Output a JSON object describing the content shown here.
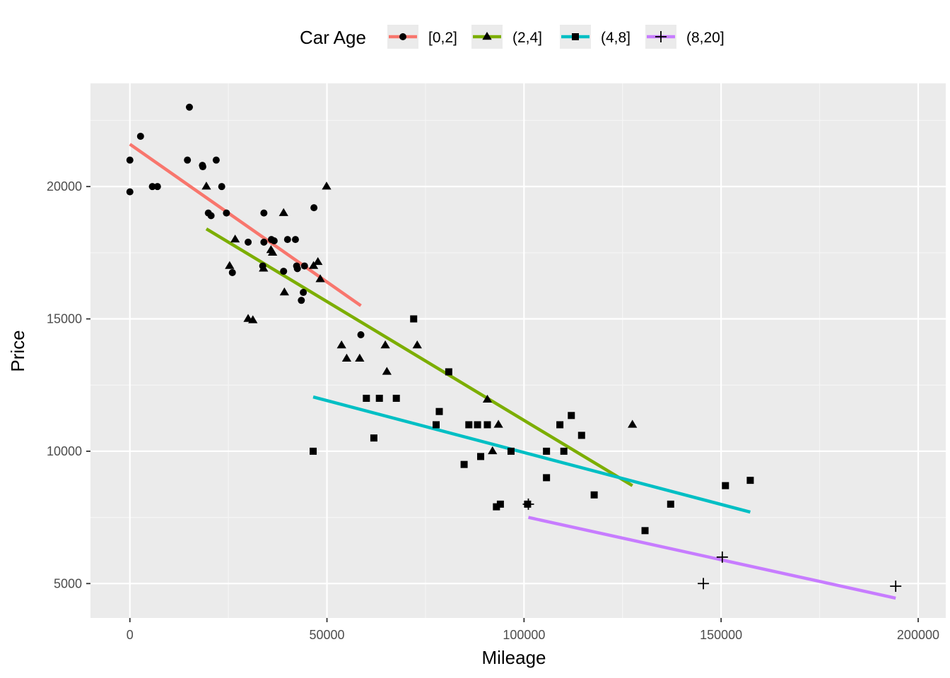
{
  "chart_data": {
    "type": "scatter",
    "title": "",
    "xlabel": "Mileage",
    "ylabel": "Price",
    "xlim": [
      -10000,
      207000
    ],
    "ylim": [
      3700,
      23900
    ],
    "x_ticks": [
      0,
      50000,
      100000,
      150000,
      200000
    ],
    "y_ticks": [
      5000,
      10000,
      15000,
      20000
    ],
    "grid": true,
    "legend": {
      "title": "Car Age",
      "position": "top"
    },
    "series": [
      {
        "name": "[0,2]",
        "color": "#F8766D",
        "marker": "circle",
        "points": [
          [
            0,
            19800
          ],
          [
            0,
            21000
          ],
          [
            2700,
            21900
          ],
          [
            5700,
            20000
          ],
          [
            7000,
            20000
          ],
          [
            14600,
            21000
          ],
          [
            15100,
            23000
          ],
          [
            18400,
            20800
          ],
          [
            18500,
            20750
          ],
          [
            19900,
            19000
          ],
          [
            20600,
            18900
          ],
          [
            21900,
            21000
          ],
          [
            23300,
            20000
          ],
          [
            24500,
            19000
          ],
          [
            26000,
            16750
          ],
          [
            30000,
            17900
          ],
          [
            33700,
            17000
          ],
          [
            34000,
            19000
          ],
          [
            34000,
            17900
          ],
          [
            35900,
            18000
          ],
          [
            36600,
            17950
          ],
          [
            39000,
            16800
          ],
          [
            40000,
            18000
          ],
          [
            42000,
            18000
          ],
          [
            42300,
            17000
          ],
          [
            42500,
            16900
          ],
          [
            43500,
            15700
          ],
          [
            44000,
            16000
          ],
          [
            44300,
            17000
          ],
          [
            46700,
            19200
          ],
          [
            58600,
            14400
          ]
        ],
        "fit": [
          [
            0,
            21600
          ],
          [
            58600,
            15500
          ]
        ]
      },
      {
        "name": "(2,4]",
        "color": "#7CAE00",
        "marker": "triangle",
        "points": [
          [
            19400,
            20000
          ],
          [
            25300,
            17000
          ],
          [
            26700,
            18000
          ],
          [
            30000,
            15000
          ],
          [
            31200,
            14950
          ],
          [
            33900,
            16900
          ],
          [
            35800,
            17600
          ],
          [
            36200,
            17500
          ],
          [
            39000,
            19000
          ],
          [
            39200,
            16000
          ],
          [
            46600,
            17000
          ],
          [
            47700,
            17150
          ],
          [
            48300,
            16500
          ],
          [
            49900,
            20000
          ],
          [
            53700,
            14000
          ],
          [
            55000,
            13500
          ],
          [
            58300,
            13500
          ],
          [
            64800,
            14000
          ],
          [
            65200,
            13000
          ],
          [
            72900,
            14000
          ],
          [
            90700,
            11950
          ],
          [
            92000,
            10000
          ],
          [
            93500,
            11000
          ],
          [
            127500,
            11000
          ]
        ],
        "fit": [
          [
            19400,
            18400
          ],
          [
            127500,
            8700
          ]
        ]
      },
      {
        "name": "(4,8]",
        "color": "#00BFC4",
        "marker": "square",
        "points": [
          [
            46500,
            10000
          ],
          [
            60000,
            12000
          ],
          [
            61900,
            10500
          ],
          [
            63300,
            12000
          ],
          [
            67600,
            12000
          ],
          [
            72000,
            15000
          ],
          [
            77700,
            11000
          ],
          [
            78500,
            11500
          ],
          [
            80900,
            13000
          ],
          [
            84800,
            9500
          ],
          [
            86000,
            11000
          ],
          [
            88200,
            11000
          ],
          [
            89000,
            9800
          ],
          [
            90700,
            11000
          ],
          [
            93000,
            7900
          ],
          [
            94000,
            8000
          ],
          [
            96700,
            10000
          ],
          [
            100900,
            8000
          ],
          [
            105700,
            10000
          ],
          [
            105700,
            9000
          ],
          [
            109100,
            11000
          ],
          [
            110100,
            10000
          ],
          [
            112000,
            11350
          ],
          [
            114600,
            10600
          ],
          [
            117800,
            8350
          ],
          [
            130700,
            7000
          ],
          [
            137200,
            8000
          ],
          [
            151100,
            8700
          ],
          [
            157400,
            8900
          ]
        ],
        "fit": [
          [
            46500,
            12050
          ],
          [
            157400,
            7700
          ]
        ]
      },
      {
        "name": "(8,20]",
        "color": "#C77CFF",
        "marker": "plus",
        "points": [
          [
            101100,
            8000
          ],
          [
            145500,
            5000
          ],
          [
            150300,
            6000
          ],
          [
            194300,
            4900
          ]
        ],
        "fit": [
          [
            101100,
            7500
          ],
          [
            194300,
            4450
          ]
        ]
      }
    ]
  }
}
